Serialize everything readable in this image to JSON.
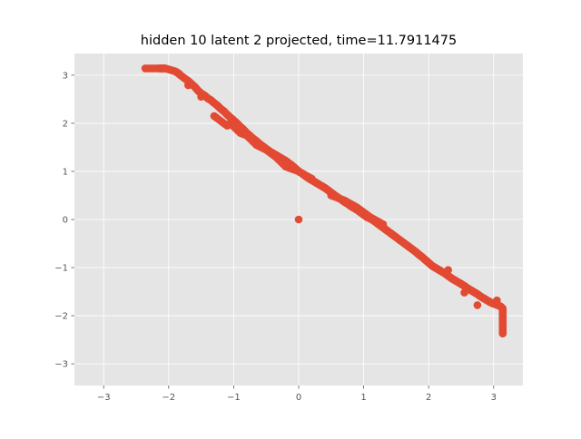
{
  "chart_data": {
    "type": "scatter",
    "title": "hidden 10 latent 2 projected, time=11.7911475",
    "xlabel": "",
    "ylabel": "",
    "xlim": [
      -3.45,
      3.45
    ],
    "ylim": [
      -3.45,
      3.45
    ],
    "xticks": [
      -3,
      -2,
      -1,
      0,
      1,
      2,
      3
    ],
    "yticks": [
      -3,
      -2,
      -1,
      0,
      1,
      2,
      3
    ],
    "xtick_labels": [
      "−3",
      "−2",
      "−1",
      "0",
      "1",
      "2",
      "3"
    ],
    "ytick_labels": [
      "−3",
      "−2",
      "−1",
      "0",
      "1",
      "2",
      "3"
    ],
    "grid": true,
    "style": "ggplot",
    "colors": {
      "marker": "#E24A33",
      "axes_bg": "#E5E5E5",
      "grid": "#FFFFFF",
      "text": "#555555"
    },
    "series": [
      {
        "color": "#E24A33",
        "x": [
          -2.36,
          -2.15,
          -2.1,
          -2.05,
          -1.9,
          -1.85,
          -1.82,
          -1.7,
          -1.65,
          -1.6,
          -1.55,
          -1.5,
          -1.45,
          -1.4,
          -1.35,
          -1.3,
          -1.25,
          -1.2,
          -1.15,
          -1.1,
          -1.05,
          -1.0,
          -0.95,
          -0.9,
          -0.85,
          -0.8,
          -0.75,
          -0.7,
          -0.65,
          -0.6,
          -0.55,
          -0.5,
          -0.45,
          -0.4,
          -0.35,
          -0.3,
          -0.25,
          -0.2,
          -0.15,
          -0.1,
          -0.05,
          0.0,
          0.05,
          0.1,
          0.15,
          0.2,
          0.25,
          0.3,
          0.35,
          0.4,
          0.45,
          0.5,
          0.55,
          0.6,
          0.65,
          0.7,
          0.75,
          0.8,
          0.85,
          0.9,
          0.95,
          1.0,
          1.05,
          1.1,
          1.15,
          1.2,
          1.25,
          1.3,
          1.35,
          1.4,
          1.45,
          1.5,
          1.55,
          1.6,
          1.65,
          1.7,
          1.75,
          1.8,
          1.85,
          1.9,
          1.95,
          2.0,
          2.05,
          2.1,
          2.15,
          2.2,
          2.25,
          2.3,
          2.35,
          2.4,
          2.45,
          2.5,
          2.55,
          2.6,
          2.65,
          2.7,
          2.75,
          2.8,
          2.85,
          2.9,
          2.95,
          3.0,
          3.1,
          3.14,
          3.14,
          3.14,
          3.14,
          3.14,
          3.14,
          -1.7,
          -1.5,
          -1.3,
          -1.1,
          -1.05,
          -0.9,
          -0.8,
          -0.65,
          -0.5,
          -0.35,
          -0.2,
          0.0,
          0.2,
          0.5,
          0.7,
          0.9,
          1.1,
          1.3,
          2.3,
          2.55,
          2.75,
          3.05,
          0.0
        ],
        "y": [
          3.14,
          3.14,
          3.14,
          3.14,
          3.08,
          3.04,
          3.0,
          2.88,
          2.82,
          2.76,
          2.68,
          2.62,
          2.58,
          2.52,
          2.48,
          2.42,
          2.37,
          2.3,
          2.25,
          2.18,
          2.12,
          2.06,
          2.0,
          1.93,
          1.87,
          1.8,
          1.74,
          1.68,
          1.63,
          1.57,
          1.52,
          1.47,
          1.42,
          1.38,
          1.34,
          1.3,
          1.26,
          1.22,
          1.17,
          1.12,
          1.06,
          1.0,
          0.96,
          0.91,
          0.86,
          0.82,
          0.78,
          0.74,
          0.7,
          0.66,
          0.61,
          0.56,
          0.51,
          0.46,
          0.42,
          0.37,
          0.33,
          0.28,
          0.24,
          0.2,
          0.15,
          0.1,
          0.05,
          0.02,
          -0.02,
          -0.07,
          -0.12,
          -0.17,
          -0.22,
          -0.27,
          -0.32,
          -0.37,
          -0.42,
          -0.47,
          -0.52,
          -0.57,
          -0.62,
          -0.67,
          -0.73,
          -0.78,
          -0.84,
          -0.9,
          -0.96,
          -1.0,
          -1.04,
          -1.08,
          -1.12,
          -1.17,
          -1.22,
          -1.26,
          -1.3,
          -1.34,
          -1.38,
          -1.43,
          -1.47,
          -1.51,
          -1.55,
          -1.6,
          -1.64,
          -1.68,
          -1.72,
          -1.75,
          -1.8,
          -1.85,
          -1.95,
          -2.05,
          -2.15,
          -2.32,
          -2.37,
          2.79,
          2.55,
          2.15,
          1.95,
          2.0,
          1.8,
          1.75,
          1.55,
          1.45,
          1.3,
          1.1,
          1.0,
          0.85,
          0.5,
          0.4,
          0.25,
          0.05,
          -0.1,
          -1.05,
          -1.52,
          -1.78,
          -1.68,
          0.0
        ]
      }
    ]
  }
}
